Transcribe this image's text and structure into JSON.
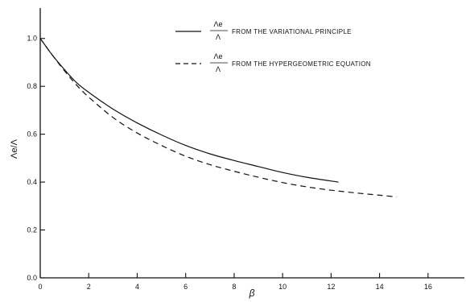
{
  "chart_data": {
    "type": "line",
    "title": "",
    "xlabel": "β",
    "ylabel": "Λe/Λ",
    "xlim": [
      0,
      17.5
    ],
    "ylim": [
      0,
      1.1
    ],
    "grid": false,
    "legend_position": "top-right",
    "x_ticks": [
      0,
      2,
      4,
      6,
      8,
      10,
      12,
      14,
      16
    ],
    "x_tick_labels": [
      "0",
      "2",
      "4",
      "6",
      "8",
      "10",
      "12",
      "14",
      "16"
    ],
    "y_ticks": [
      0.0,
      0.2,
      0.4,
      0.6,
      0.8,
      1.0
    ],
    "y_tick_labels": [
      "0.0",
      "0.2",
      "0.4",
      "0.6",
      "0.8",
      "1.0"
    ],
    "series": [
      {
        "name": "FROM THE VARIATIONAL PRINCIPLE",
        "fraction_numerator": "Λe",
        "fraction_denominator": "Λ",
        "style": "solid",
        "color": "#111111",
        "x": [
          0,
          0.25,
          0.5,
          1.0,
          1.5,
          2,
          3,
          4,
          5,
          6,
          7,
          8,
          9,
          10,
          11,
          12.3
        ],
        "y": [
          1.0,
          0.965,
          0.93,
          0.87,
          0.815,
          0.775,
          0.705,
          0.647,
          0.597,
          0.553,
          0.518,
          0.49,
          0.465,
          0.44,
          0.42,
          0.4
        ]
      },
      {
        "name": "FROM THE HYPERGEOMETRIC EQUATION",
        "fraction_numerator": "Λe",
        "fraction_denominator": "Λ",
        "style": "dashed",
        "color": "#111111",
        "x": [
          0,
          0.25,
          0.5,
          1.0,
          1.5,
          2,
          3,
          4,
          5,
          6,
          7,
          8,
          9,
          10,
          11,
          12,
          13,
          14,
          14.7
        ],
        "y": [
          1.0,
          0.965,
          0.93,
          0.865,
          0.805,
          0.755,
          0.67,
          0.605,
          0.553,
          0.508,
          0.473,
          0.445,
          0.42,
          0.398,
          0.38,
          0.366,
          0.355,
          0.345,
          0.338
        ]
      }
    ]
  }
}
